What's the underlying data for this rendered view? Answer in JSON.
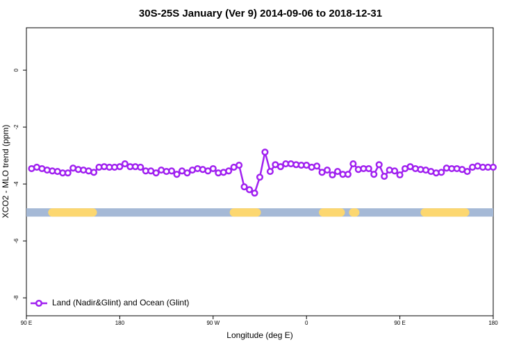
{
  "chart_data": {
    "type": "line",
    "title": "30S-25S January (Ver 9)   2014-09-06 to 2018-12-31",
    "x_label": "Longitude (deg E)",
    "y_label": "XCO2 - MLO trend (ppm)",
    "xlim": [
      90,
      540
    ],
    "ylim": [
      -8.63,
      1.49
    ],
    "xticks": [
      {
        "value": 90,
        "label": "90 E"
      },
      180,
      {
        "value": 270,
        "label": "90 W"
      },
      {
        "value": 360,
        "label": "0"
      },
      {
        "value": 450,
        "label": "90 E"
      },
      {
        "value": 540,
        "label": "180"
      }
    ],
    "yticks": [
      0,
      -2,
      -4,
      -6,
      -8
    ],
    "x": [
      95,
      100,
      105,
      110,
      115,
      120,
      125,
      130,
      135,
      140,
      145,
      150,
      155,
      160,
      165,
      170,
      175,
      180,
      185,
      190,
      195,
      200,
      205,
      210,
      215,
      220,
      225,
      230,
      235,
      240,
      245,
      250,
      255,
      260,
      265,
      270,
      275,
      280,
      285,
      290,
      295,
      300,
      305,
      310,
      315,
      320,
      325,
      330,
      335,
      340,
      345,
      350,
      355,
      360,
      365,
      370,
      375,
      380,
      385,
      390,
      395,
      400,
      405,
      410,
      415,
      420,
      425,
      430,
      435,
      440,
      445,
      450,
      455,
      460,
      465,
      470,
      475,
      480,
      485,
      490,
      495,
      500,
      505,
      510,
      515,
      520,
      525,
      530,
      535,
      540
    ],
    "series": [
      {
        "name": "Land (Nadir&Glint) and Ocean (Glint)",
        "color": "#a020f0",
        "values": [
          -3.46,
          -3.41,
          -3.46,
          -3.51,
          -3.54,
          -3.56,
          -3.61,
          -3.61,
          -3.44,
          -3.49,
          -3.51,
          -3.54,
          -3.59,
          -3.41,
          -3.39,
          -3.41,
          -3.41,
          -3.39,
          -3.29,
          -3.39,
          -3.39,
          -3.41,
          -3.54,
          -3.54,
          -3.61,
          -3.51,
          -3.56,
          -3.54,
          -3.66,
          -3.54,
          -3.61,
          -3.51,
          -3.46,
          -3.49,
          -3.54,
          -3.46,
          -3.61,
          -3.59,
          -3.54,
          -3.41,
          -3.34,
          -4.1,
          -4.2,
          -4.32,
          -3.76,
          -2.88,
          -3.56,
          -3.32,
          -3.39,
          -3.29,
          -3.29,
          -3.32,
          -3.34,
          -3.34,
          -3.41,
          -3.37,
          -3.59,
          -3.51,
          -3.68,
          -3.56,
          -3.66,
          -3.66,
          -3.29,
          -3.49,
          -3.46,
          -3.46,
          -3.66,
          -3.32,
          -3.73,
          -3.51,
          -3.54,
          -3.68,
          -3.46,
          -3.39,
          -3.46,
          -3.49,
          -3.51,
          -3.56,
          -3.61,
          -3.59,
          -3.44,
          -3.46,
          -3.46,
          -3.49,
          -3.56,
          -3.41,
          -3.37,
          -3.41,
          -3.41,
          -3.41
        ]
      }
    ],
    "surface_bar": {
      "y": -5,
      "ocean_color": "#a5b9d6",
      "land_color": "#fcd770",
      "land": [
        [
          115,
          154
        ],
        [
          290,
          312
        ],
        [
          376,
          393
        ],
        [
          405,
          407
        ],
        [
          474,
          513
        ]
      ]
    },
    "legend": "bottom-left"
  }
}
